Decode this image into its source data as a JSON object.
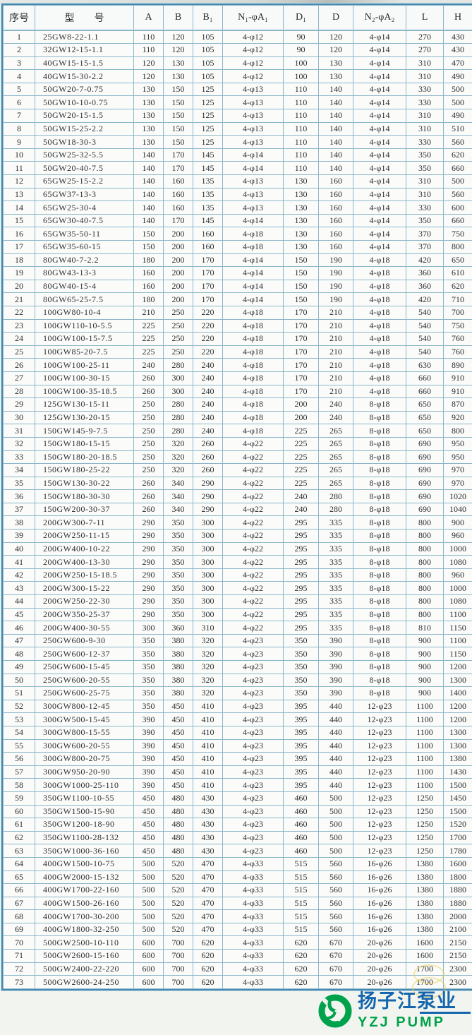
{
  "table": {
    "columns": [
      "序号",
      "型　　号",
      "A",
      "B",
      "B₁",
      "N₁-φA₁",
      "D₁",
      "D",
      "N₂-φA₂",
      "L",
      "H"
    ],
    "rows": [
      [
        "1",
        "25GW8-22-1.1",
        "110",
        "120",
        "105",
        "4-φ12",
        "90",
        "120",
        "4-φ14",
        "270",
        "430"
      ],
      [
        "2",
        "32GW12-15-1.1",
        "110",
        "120",
        "105",
        "4-φ12",
        "90",
        "120",
        "4-φ14",
        "270",
        "430"
      ],
      [
        "3",
        "40GW15-15-1.5",
        "120",
        "130",
        "105",
        "4-φ12",
        "100",
        "130",
        "4-φ14",
        "310",
        "470"
      ],
      [
        "4",
        "40GW15-30-2.2",
        "120",
        "130",
        "105",
        "4-φ12",
        "100",
        "130",
        "4-φ14",
        "310",
        "490"
      ],
      [
        "5",
        "50GW20-7-0.75",
        "130",
        "150",
        "125",
        "4-φ13",
        "110",
        "140",
        "4-φ14",
        "330",
        "500"
      ],
      [
        "6",
        "50GW10-10-0.75",
        "130",
        "150",
        "125",
        "4-φ13",
        "110",
        "140",
        "4-φ14",
        "330",
        "500"
      ],
      [
        "7",
        "50GW20-15-1.5",
        "130",
        "150",
        "125",
        "4-φ13",
        "110",
        "140",
        "4-φ14",
        "310",
        "490"
      ],
      [
        "8",
        "50GW15-25-2.2",
        "130",
        "150",
        "125",
        "4-φ13",
        "110",
        "140",
        "4-φ14",
        "310",
        "510"
      ],
      [
        "9",
        "50GW18-30-3",
        "130",
        "150",
        "125",
        "4-φ13",
        "110",
        "140",
        "4-φ14",
        "330",
        "560"
      ],
      [
        "10",
        "50GW25-32-5.5",
        "140",
        "170",
        "145",
        "4-φ14",
        "110",
        "140",
        "4-φ14",
        "350",
        "620"
      ],
      [
        "11",
        "50GW20-40-7.5",
        "140",
        "170",
        "145",
        "4-φ14",
        "110",
        "140",
        "4-φ14",
        "350",
        "660"
      ],
      [
        "12",
        "65GW25-15-2.2",
        "140",
        "160",
        "135",
        "4-φ13",
        "130",
        "160",
        "4-φ14",
        "310",
        "500"
      ],
      [
        "13",
        "65GW37-13-3",
        "140",
        "160",
        "135",
        "4-φ13",
        "130",
        "160",
        "4-φ14",
        "310",
        "560"
      ],
      [
        "14",
        "65GW25-30-4",
        "140",
        "160",
        "135",
        "4-φ13",
        "130",
        "160",
        "4-φ14",
        "330",
        "600"
      ],
      [
        "15",
        "65GW30-40-7.5",
        "140",
        "170",
        "145",
        "4-φ14",
        "130",
        "160",
        "4-φ14",
        "350",
        "660"
      ],
      [
        "16",
        "65GW35-50-11",
        "150",
        "200",
        "160",
        "4-φ18",
        "130",
        "160",
        "4-φ14",
        "370",
        "750"
      ],
      [
        "17",
        "65GW35-60-15",
        "150",
        "200",
        "160",
        "4-φ18",
        "130",
        "160",
        "4-φ14",
        "370",
        "800"
      ],
      [
        "18",
        "80GW40-7-2.2",
        "180",
        "200",
        "170",
        "4-φ14",
        "150",
        "190",
        "4-φ18",
        "420",
        "650"
      ],
      [
        "19",
        "80GW43-13-3",
        "160",
        "200",
        "170",
        "4-φ14",
        "150",
        "190",
        "4-φ18",
        "360",
        "610"
      ],
      [
        "20",
        "80GW40-15-4",
        "160",
        "200",
        "170",
        "4-φ14",
        "150",
        "190",
        "4-φ18",
        "360",
        "620"
      ],
      [
        "21",
        "80GW65-25-7.5",
        "180",
        "200",
        "170",
        "4-φ14",
        "150",
        "190",
        "4-φ18",
        "420",
        "710"
      ],
      [
        "22",
        "100GW80-10-4",
        "210",
        "250",
        "220",
        "4-φ18",
        "170",
        "210",
        "4-φ18",
        "540",
        "700"
      ],
      [
        "23",
        "100GW110-10-5.5",
        "225",
        "250",
        "220",
        "4-φ18",
        "170",
        "210",
        "4-φ18",
        "540",
        "750"
      ],
      [
        "24",
        "100GW100-15-7.5",
        "225",
        "250",
        "220",
        "4-φ18",
        "170",
        "210",
        "4-φ18",
        "540",
        "760"
      ],
      [
        "25",
        "100GW85-20-7.5",
        "225",
        "250",
        "220",
        "4-φ18",
        "170",
        "210",
        "4-φ18",
        "540",
        "760"
      ],
      [
        "26",
        "100GW100-25-11",
        "240",
        "280",
        "240",
        "4-φ18",
        "170",
        "210",
        "4-φ18",
        "630",
        "890"
      ],
      [
        "27",
        "100GW100-30-15",
        "260",
        "300",
        "240",
        "4-φ18",
        "170",
        "210",
        "4-φ18",
        "660",
        "910"
      ],
      [
        "28",
        "100GW100-35-18.5",
        "260",
        "300",
        "240",
        "4-φ18",
        "170",
        "210",
        "4-φ18",
        "660",
        "910"
      ],
      [
        "29",
        "125GW130-15-11",
        "250",
        "280",
        "240",
        "4-φ18",
        "200",
        "240",
        "8-φ18",
        "650",
        "870"
      ],
      [
        "30",
        "125GW130-20-15",
        "250",
        "280",
        "240",
        "4-φ18",
        "200",
        "240",
        "8-φ18",
        "650",
        "920"
      ],
      [
        "31",
        "150GW145-9-7.5",
        "250",
        "280",
        "240",
        "4-φ18",
        "225",
        "265",
        "8-φ18",
        "650",
        "800"
      ],
      [
        "32",
        "150GW180-15-15",
        "250",
        "320",
        "260",
        "4-φ22",
        "225",
        "265",
        "8-φ18",
        "690",
        "950"
      ],
      [
        "33",
        "150GW180-20-18.5",
        "250",
        "320",
        "260",
        "4-φ22",
        "225",
        "265",
        "8-φ18",
        "690",
        "950"
      ],
      [
        "34",
        "150GW180-25-22",
        "250",
        "320",
        "260",
        "4-φ22",
        "225",
        "265",
        "8-φ18",
        "690",
        "970"
      ],
      [
        "35",
        "150GW130-30-22",
        "260",
        "340",
        "290",
        "4-φ22",
        "225",
        "265",
        "8-φ18",
        "690",
        "970"
      ],
      [
        "36",
        "150GW180-30-30",
        "260",
        "340",
        "290",
        "4-φ22",
        "240",
        "280",
        "8-φ18",
        "690",
        "1020"
      ],
      [
        "37",
        "150GW200-30-37",
        "260",
        "340",
        "290",
        "4-φ22",
        "240",
        "280",
        "8-φ18",
        "690",
        "1040"
      ],
      [
        "38",
        "200GW300-7-11",
        "290",
        "350",
        "300",
        "4-φ22",
        "295",
        "335",
        "8-φ18",
        "800",
        "900"
      ],
      [
        "39",
        "200GW250-11-15",
        "290",
        "350",
        "300",
        "4-φ22",
        "295",
        "335",
        "8-φ18",
        "800",
        "960"
      ],
      [
        "40",
        "200GW400-10-22",
        "290",
        "350",
        "300",
        "4-φ22",
        "295",
        "335",
        "8-φ18",
        "800",
        "1000"
      ],
      [
        "41",
        "200GW400-13-30",
        "290",
        "350",
        "300",
        "4-φ22",
        "295",
        "335",
        "8-φ18",
        "800",
        "1080"
      ],
      [
        "42",
        "200GW250-15-18.5",
        "290",
        "350",
        "300",
        "4-φ22",
        "295",
        "335",
        "8-φ18",
        "800",
        "960"
      ],
      [
        "43",
        "200GW300-15-22",
        "290",
        "350",
        "300",
        "4-φ22",
        "295",
        "335",
        "8-φ18",
        "800",
        "1000"
      ],
      [
        "44",
        "200GW250-22-30",
        "290",
        "350",
        "300",
        "4-φ22",
        "295",
        "335",
        "8-φ18",
        "800",
        "1080"
      ],
      [
        "45",
        "200GW350-25-37",
        "290",
        "350",
        "300",
        "4-φ22",
        "295",
        "335",
        "8-φ18",
        "800",
        "1100"
      ],
      [
        "46",
        "200GW400-30-55",
        "300",
        "360",
        "310",
        "4-φ22",
        "295",
        "335",
        "8-φ18",
        "810",
        "1150"
      ],
      [
        "47",
        "250GW600-9-30",
        "350",
        "380",
        "320",
        "4-φ23",
        "350",
        "390",
        "8-φ18",
        "900",
        "1100"
      ],
      [
        "48",
        "250GW600-12-37",
        "350",
        "380",
        "320",
        "4-φ23",
        "350",
        "390",
        "8-φ18",
        "900",
        "1150"
      ],
      [
        "49",
        "250GW600-15-45",
        "350",
        "380",
        "320",
        "4-φ23",
        "350",
        "390",
        "8-φ18",
        "900",
        "1200"
      ],
      [
        "50",
        "250GW600-20-55",
        "350",
        "380",
        "320",
        "4-φ23",
        "350",
        "390",
        "8-φ18",
        "900",
        "1300"
      ],
      [
        "51",
        "250GW600-25-75",
        "350",
        "380",
        "320",
        "4-φ23",
        "350",
        "390",
        "8-φ18",
        "900",
        "1400"
      ],
      [
        "52",
        "300GW800-12-45",
        "350",
        "450",
        "410",
        "4-φ23",
        "395",
        "440",
        "12-φ23",
        "1100",
        "1200"
      ],
      [
        "53",
        "300GW500-15-45",
        "390",
        "450",
        "410",
        "4-φ23",
        "395",
        "440",
        "12-φ23",
        "1100",
        "1200"
      ],
      [
        "54",
        "300GW800-15-55",
        "390",
        "450",
        "410",
        "4-φ23",
        "395",
        "440",
        "12-φ23",
        "1100",
        "1300"
      ],
      [
        "55",
        "300GW600-20-55",
        "390",
        "450",
        "410",
        "4-φ23",
        "395",
        "440",
        "12-φ23",
        "1100",
        "1300"
      ],
      [
        "56",
        "300GW800-20-75",
        "390",
        "450",
        "410",
        "4-φ23",
        "395",
        "440",
        "12-φ23",
        "1100",
        "1380"
      ],
      [
        "57",
        "300GW950-20-90",
        "390",
        "450",
        "410",
        "4-φ23",
        "395",
        "440",
        "12-φ23",
        "1100",
        "1430"
      ],
      [
        "58",
        "300GW1000-25-110",
        "390",
        "450",
        "410",
        "4-φ23",
        "395",
        "440",
        "12-φ23",
        "1100",
        "1500"
      ],
      [
        "59",
        "350GW1100-10-55",
        "450",
        "480",
        "430",
        "4-φ23",
        "460",
        "500",
        "12-φ23",
        "1250",
        "1450"
      ],
      [
        "60",
        "350GW1500-15-90",
        "450",
        "480",
        "430",
        "4-φ23",
        "460",
        "500",
        "12-φ23",
        "1250",
        "1500"
      ],
      [
        "61",
        "350GW1200-18-90",
        "450",
        "480",
        "430",
        "4-φ23",
        "460",
        "500",
        "12-φ23",
        "1250",
        "1520"
      ],
      [
        "62",
        "350GW1100-28-132",
        "450",
        "480",
        "430",
        "4-φ23",
        "460",
        "500",
        "12-φ23",
        "1250",
        "1700"
      ],
      [
        "63",
        "350GW1000-36-160",
        "450",
        "480",
        "430",
        "4-φ23",
        "460",
        "500",
        "12-φ23",
        "1250",
        "1780"
      ],
      [
        "64",
        "400GW1500-10-75",
        "500",
        "520",
        "470",
        "4-φ33",
        "515",
        "560",
        "16-φ26",
        "1380",
        "1600"
      ],
      [
        "65",
        "400GW2000-15-132",
        "500",
        "520",
        "470",
        "4-φ33",
        "515",
        "560",
        "16-φ26",
        "1380",
        "1800"
      ],
      [
        "66",
        "400GW1700-22-160",
        "500",
        "520",
        "470",
        "4-φ33",
        "515",
        "560",
        "16-φ26",
        "1380",
        "1880"
      ],
      [
        "67",
        "400GW1500-26-160",
        "500",
        "520",
        "470",
        "4-φ33",
        "515",
        "560",
        "16-φ26",
        "1380",
        "1880"
      ],
      [
        "68",
        "400GW1700-30-200",
        "500",
        "520",
        "470",
        "4-φ33",
        "515",
        "560",
        "16-φ26",
        "1380",
        "2000"
      ],
      [
        "69",
        "400GW1800-32-250",
        "500",
        "520",
        "470",
        "4-φ33",
        "515",
        "560",
        "16-φ26",
        "1380",
        "2100"
      ],
      [
        "70",
        "500GW2500-10-110",
        "600",
        "700",
        "620",
        "4-φ33",
        "620",
        "670",
        "20-φ26",
        "1600",
        "2150"
      ],
      [
        "71",
        "500GW2600-15-160",
        "600",
        "700",
        "620",
        "4-φ33",
        "620",
        "670",
        "20-φ26",
        "1600",
        "2150"
      ],
      [
        "72",
        "500GW2400-22-220",
        "600",
        "700",
        "620",
        "4-φ33",
        "620",
        "670",
        "20-φ26",
        "1700",
        "2300"
      ],
      [
        "73",
        "500GW2600-24-250",
        "600",
        "700",
        "620",
        "4-φ33",
        "620",
        "670",
        "20-φ26",
        "1700",
        "2300"
      ]
    ]
  },
  "logo": {
    "cn": "扬子江泵业",
    "en": "YZJ PUMP"
  },
  "colors": {
    "grid_blue": "#8cb6ca",
    "frame_blue": "#4389b0",
    "text": "#2a2d30",
    "logo_green": "#00a24b",
    "logo_blue": "#1566ad",
    "highlight_yellow": "#e9ce58"
  }
}
